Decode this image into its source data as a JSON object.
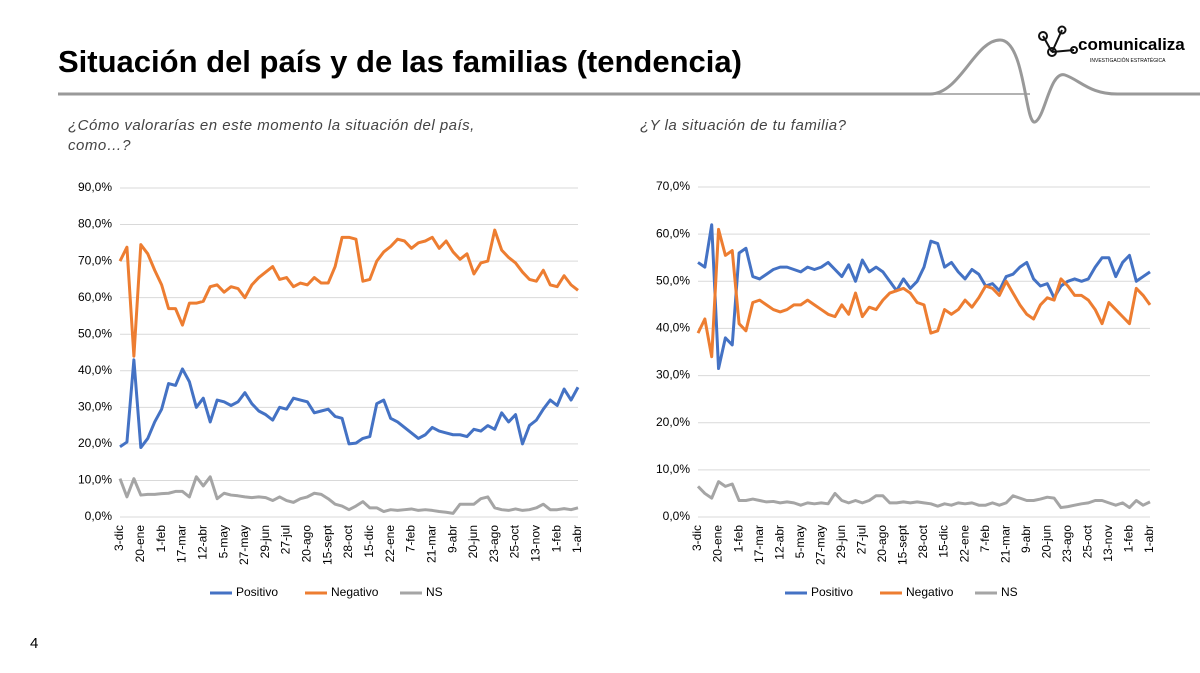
{
  "header": {
    "title": "Situación del país y de las familias (tendencia)",
    "logo": "comunicaliza",
    "logo_tagline": "INVESTIGACIÓN ESTRATÉGICA"
  },
  "page_number": "4",
  "chart_data": [
    {
      "type": "line",
      "subtitle": [
        "¿Cómo valorarías en este momento la situación del país,",
        "como…?"
      ],
      "categories": [
        "3-dic",
        null,
        null,
        "20-ene",
        null,
        null,
        "1-feb",
        null,
        null,
        "17-mar",
        null,
        null,
        "12-abr",
        null,
        null,
        "5-may",
        null,
        null,
        "27-may",
        null,
        null,
        "29-jun",
        null,
        null,
        "27-jul",
        null,
        null,
        "20-ago",
        null,
        null,
        "15-sept",
        null,
        null,
        "28-oct",
        null,
        null,
        "15-dic",
        null,
        null,
        "22-ene",
        null,
        null,
        "7-feb",
        null,
        null,
        "21-mar",
        null,
        null,
        "9-abr",
        null,
        null,
        "20-jun",
        null,
        null,
        "23-ago",
        null,
        null,
        "25-oct",
        null,
        null,
        "13-nov",
        null,
        null,
        "1-feb",
        null,
        null,
        "1-abr"
      ],
      "ylim": [
        0,
        90
      ],
      "yticks": [
        {
          "value": 0,
          "label": "0,0%"
        },
        {
          "value": 10,
          "label": "10,0%"
        },
        {
          "value": 20,
          "label": "20,0%"
        },
        {
          "value": 30,
          "label": "30,0%"
        },
        {
          "value": 40,
          "label": "40,0%"
        },
        {
          "value": 50,
          "label": "50,0%"
        },
        {
          "value": 60,
          "label": "60,0%"
        },
        {
          "value": 70,
          "label": "70,0%"
        },
        {
          "value": 80,
          "label": "80,0%"
        },
        {
          "value": 90,
          "label": "90,0%"
        }
      ],
      "grid": true,
      "legend": "bottom",
      "series": [
        {
          "name": "Positivo",
          "color": "#4472c4",
          "values": [
            19.2,
            20.5,
            43.0,
            19.0,
            21.5,
            26.0,
            29.5,
            36.5,
            36.0,
            40.5,
            37.0,
            30.0,
            32.5,
            26.0,
            32.0,
            31.5,
            30.5,
            31.5,
            34.0,
            31.0,
            29.0,
            28.0,
            26.5,
            30.0,
            29.5,
            32.5,
            32.0,
            31.5,
            28.5,
            29.0,
            29.5,
            27.5,
            27.0,
            20.0,
            20.2,
            21.5,
            22.0,
            31.0,
            32.0,
            27.0,
            26.0,
            24.5,
            23.0,
            21.5,
            22.5,
            24.5,
            23.5,
            23.0,
            22.5,
            22.5,
            22.0,
            24.0,
            23.5,
            25.0,
            24.0,
            28.5,
            26.0,
            28.0,
            20.0,
            25.0,
            26.5,
            29.5,
            32.0,
            30.5,
            35.0,
            32.0,
            35.5
          ]
        },
        {
          "name": "Negativo",
          "color": "#ed7d31",
          "values": [
            70.0,
            73.8,
            44.0,
            74.5,
            72.0,
            67.5,
            63.5,
            57.0,
            57.0,
            52.5,
            58.5,
            58.5,
            59.0,
            63.0,
            63.5,
            61.5,
            63.0,
            62.5,
            60.0,
            63.5,
            65.5,
            67.0,
            68.5,
            65.0,
            65.5,
            63.0,
            64.0,
            63.5,
            65.5,
            64.0,
            64.0,
            68.5,
            76.5,
            76.5,
            76.0,
            64.5,
            65.0,
            70.0,
            72.5,
            74.0,
            76.0,
            75.5,
            73.5,
            75.0,
            75.5,
            76.5,
            73.5,
            75.5,
            72.5,
            70.5,
            72.0,
            66.5,
            69.5,
            70.0,
            78.5,
            73.0,
            71.0,
            69.5,
            67.0,
            65.0,
            64.5,
            67.5,
            63.5,
            63.0,
            66.0,
            63.5,
            62.0
          ]
        },
        {
          "name": "NS",
          "color": "#a5a5a5",
          "values": [
            10.5,
            5.5,
            10.5,
            6.0,
            6.2,
            6.2,
            6.4,
            6.5,
            7.0,
            7.0,
            5.5,
            11.0,
            8.5,
            11.0,
            5.0,
            6.5,
            6.0,
            5.8,
            5.5,
            5.3,
            5.5,
            5.3,
            4.5,
            5.5,
            4.5,
            4.0,
            5.0,
            5.5,
            6.5,
            6.2,
            5.0,
            3.5,
            3.0,
            2.0,
            3.0,
            4.2,
            2.5,
            2.5,
            1.5,
            2.0,
            1.8,
            2.0,
            2.2,
            1.8,
            2.0,
            1.8,
            1.5,
            1.3,
            1.0,
            3.5,
            3.5,
            3.5,
            5.0,
            5.5,
            2.5,
            2.0,
            1.8,
            2.2,
            1.8,
            2.0,
            2.5,
            3.5,
            2.0,
            2.0,
            2.3,
            2.0,
            2.5
          ]
        }
      ]
    },
    {
      "type": "line",
      "subtitle": [
        "¿Y la situación de tu familia?"
      ],
      "categories": [
        "3-dic",
        null,
        null,
        "20-ene",
        null,
        null,
        "1-feb",
        null,
        null,
        "17-mar",
        null,
        null,
        "12-abr",
        null,
        null,
        "5-may",
        null,
        null,
        "27-may",
        null,
        null,
        "29-jun",
        null,
        null,
        "27-jul",
        null,
        null,
        "20-ago",
        null,
        null,
        "15-sept",
        null,
        null,
        "28-oct",
        null,
        null,
        "15-dic",
        null,
        null,
        "22-ene",
        null,
        null,
        "7-feb",
        null,
        null,
        "21-mar",
        null,
        null,
        "9-abr",
        null,
        null,
        "20-jun",
        null,
        null,
        "23-ago",
        null,
        null,
        "25-oct",
        null,
        null,
        "13-nov",
        null,
        null,
        "1-feb",
        null,
        null,
        "1-abr"
      ],
      "ylim": [
        0,
        70
      ],
      "yticks": [
        {
          "value": 0,
          "label": "0,0%"
        },
        {
          "value": 10,
          "label": "10,0%"
        },
        {
          "value": 20,
          "label": "20,0%"
        },
        {
          "value": 30,
          "label": "30,0%"
        },
        {
          "value": 40,
          "label": "40,0%"
        },
        {
          "value": 50,
          "label": "50,0%"
        },
        {
          "value": 60,
          "label": "60,0%"
        },
        {
          "value": 70,
          "label": "70,0%"
        }
      ],
      "grid": true,
      "legend": "bottom",
      "series": [
        {
          "name": "Positivo",
          "color": "#4472c4",
          "values": [
            54.0,
            53.0,
            62.0,
            31.5,
            38.0,
            36.5,
            56.0,
            57.0,
            51.0,
            50.5,
            51.5,
            52.5,
            53.0,
            53.0,
            52.5,
            52.0,
            53.0,
            52.5,
            53.0,
            54.0,
            52.5,
            51.0,
            53.5,
            50.0,
            54.5,
            52.0,
            53.0,
            52.0,
            50.0,
            48.0,
            50.5,
            48.5,
            50.0,
            53.0,
            58.5,
            58.0,
            53.0,
            54.0,
            52.0,
            50.5,
            52.5,
            51.5,
            49.0,
            49.5,
            48.0,
            51.0,
            51.5,
            53.0,
            54.0,
            50.5,
            49.0,
            49.5,
            46.5,
            49.0,
            50.0,
            50.5,
            50.0,
            50.5,
            53.0,
            55.0,
            55.0,
            51.0,
            54.0,
            55.5,
            50.0,
            51.0,
            52.0
          ]
        },
        {
          "name": "Negativo",
          "color": "#ed7d31",
          "values": [
            39.0,
            42.0,
            34.0,
            61.0,
            55.5,
            56.5,
            41.0,
            39.5,
            45.5,
            46.0,
            45.0,
            44.0,
            43.5,
            44.0,
            45.0,
            45.0,
            46.0,
            45.0,
            44.0,
            43.0,
            42.5,
            45.0,
            43.0,
            47.5,
            42.5,
            44.5,
            44.0,
            46.0,
            47.5,
            48.0,
            48.5,
            47.5,
            45.5,
            45.0,
            39.0,
            39.5,
            44.0,
            43.0,
            44.0,
            46.0,
            44.5,
            46.5,
            49.0,
            48.5,
            47.0,
            50.0,
            47.5,
            45.0,
            43.0,
            42.0,
            45.0,
            46.5,
            46.0,
            50.5,
            49.0,
            47.0,
            47.0,
            46.0,
            44.0,
            41.0,
            45.5,
            44.0,
            42.5,
            41.0,
            48.5,
            47.0,
            45.0
          ]
        },
        {
          "name": "NS",
          "color": "#a5a5a5",
          "values": [
            6.5,
            5.0,
            4.0,
            7.5,
            6.5,
            7.0,
            3.5,
            3.5,
            3.8,
            3.5,
            3.2,
            3.3,
            3.0,
            3.2,
            3.0,
            2.5,
            3.0,
            2.8,
            3.0,
            2.8,
            5.0,
            3.5,
            3.0,
            3.5,
            3.0,
            3.5,
            4.5,
            4.5,
            3.0,
            3.0,
            3.2,
            3.0,
            3.2,
            3.0,
            2.8,
            2.3,
            2.8,
            2.5,
            3.0,
            2.8,
            3.0,
            2.5,
            2.5,
            3.0,
            2.5,
            3.0,
            4.5,
            4.0,
            3.5,
            3.5,
            3.8,
            4.2,
            4.0,
            2.0,
            2.2,
            2.5,
            2.8,
            3.0,
            3.5,
            3.5,
            3.0,
            2.5,
            3.0,
            2.0,
            3.5,
            2.5,
            3.2
          ]
        }
      ]
    }
  ]
}
